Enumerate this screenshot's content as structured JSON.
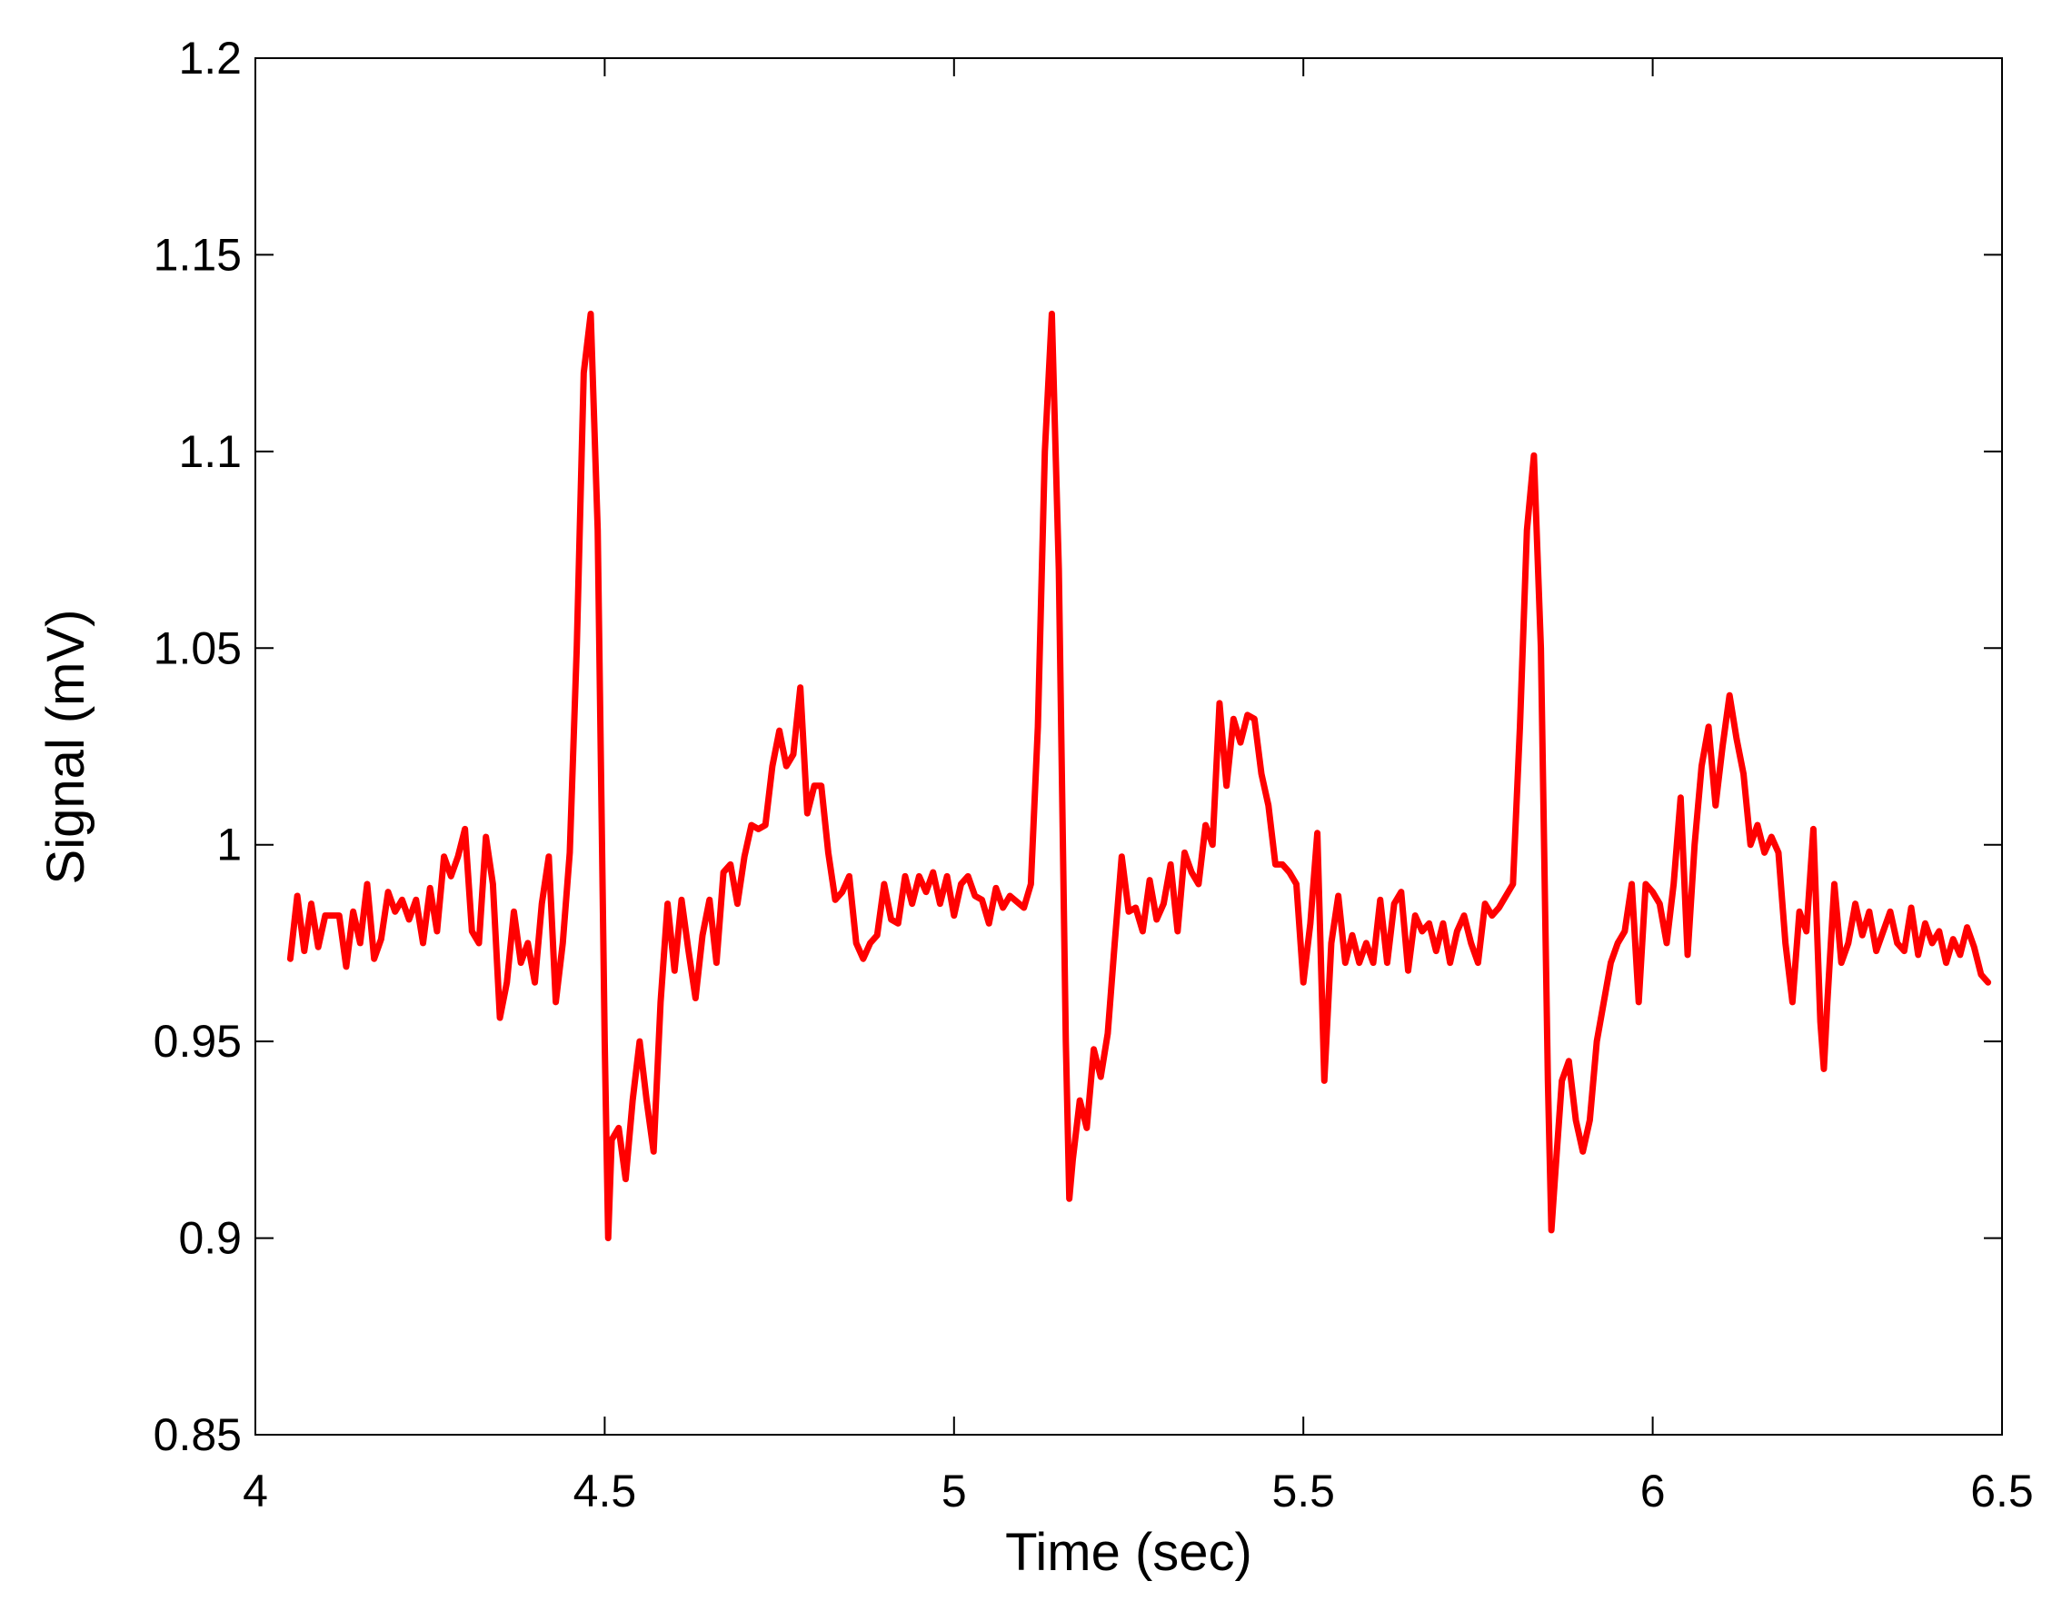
{
  "chart_data": {
    "type": "line",
    "x_label": "Time (sec)",
    "y_label": "Signal (mV)",
    "color": "#ff0000",
    "xlim": [
      4,
      6.5
    ],
    "xticks": [
      4,
      4.5,
      5,
      5.5,
      6,
      6.5
    ],
    "ylim": [
      0.85,
      1.2
    ],
    "yticks": [
      0.85,
      0.9,
      0.95,
      1,
      1.05,
      1.1,
      1.15,
      1.2
    ],
    "grid": false,
    "x": [
      4.05,
      4.06,
      4.07,
      4.08,
      4.09,
      4.1,
      4.12,
      4.13,
      4.14,
      4.15,
      4.16,
      4.17,
      4.18,
      4.19,
      4.2,
      4.21,
      4.22,
      4.23,
      4.24,
      4.25,
      4.26,
      4.27,
      4.28,
      4.29,
      4.3,
      4.31,
      4.32,
      4.33,
      4.34,
      4.35,
      4.36,
      4.37,
      4.38,
      4.39,
      4.4,
      4.41,
      4.42,
      4.43,
      4.44,
      4.45,
      4.46,
      4.47,
      4.48,
      4.49,
      4.5,
      4.505,
      4.51,
      4.52,
      4.53,
      4.54,
      4.55,
      4.56,
      4.57,
      4.58,
      4.59,
      4.6,
      4.61,
      4.62,
      4.63,
      4.64,
      4.65,
      4.66,
      4.67,
      4.68,
      4.69,
      4.7,
      4.71,
      4.72,
      4.73,
      4.74,
      4.75,
      4.76,
      4.77,
      4.78,
      4.79,
      4.8,
      4.81,
      4.82,
      4.83,
      4.84,
      4.85,
      4.86,
      4.87,
      4.88,
      4.89,
      4.9,
      4.91,
      4.92,
      4.93,
      4.94,
      4.95,
      4.96,
      4.97,
      4.98,
      4.99,
      5,
      5.01,
      5.02,
      5.03,
      5.04,
      5.05,
      5.06,
      5.07,
      5.08,
      5.1,
      5.11,
      5.12,
      5.13,
      5.14,
      5.15,
      5.16,
      5.165,
      5.17,
      5.18,
      5.19,
      5.2,
      5.21,
      5.22,
      5.23,
      5.24,
      5.25,
      5.26,
      5.27,
      5.28,
      5.29,
      5.3,
      5.31,
      5.32,
      5.33,
      5.34,
      5.35,
      5.36,
      5.37,
      5.38,
      5.39,
      5.4,
      5.41,
      5.42,
      5.43,
      5.44,
      5.45,
      5.46,
      5.47,
      5.48,
      5.49,
      5.5,
      5.51,
      5.52,
      5.53,
      5.54,
      5.55,
      5.56,
      5.57,
      5.58,
      5.59,
      5.6,
      5.61,
      5.62,
      5.63,
      5.64,
      5.65,
      5.66,
      5.67,
      5.68,
      5.69,
      5.7,
      5.71,
      5.72,
      5.73,
      5.74,
      5.75,
      5.76,
      5.77,
      5.78,
      5.8,
      5.81,
      5.82,
      5.83,
      5.84,
      5.85,
      5.855,
      5.86,
      5.87,
      5.88,
      5.89,
      5.9,
      5.91,
      5.92,
      5.93,
      5.94,
      5.95,
      5.96,
      5.97,
      5.98,
      5.99,
      6,
      6.01,
      6.02,
      6.03,
      6.04,
      6.05,
      6.06,
      6.07,
      6.08,
      6.09,
      6.1,
      6.11,
      6.12,
      6.13,
      6.14,
      6.15,
      6.16,
      6.17,
      6.18,
      6.19,
      6.2,
      6.21,
      6.22,
      6.23,
      6.24,
      6.245,
      6.25,
      6.26,
      6.27,
      6.28,
      6.29,
      6.3,
      6.31,
      6.32,
      6.33,
      6.34,
      6.35,
      6.36,
      6.37,
      6.38,
      6.39,
      6.4,
      6.41,
      6.42,
      6.43,
      6.44,
      6.45,
      6.46,
      6.47,
      6.48
    ],
    "values": [
      0.971,
      0.987,
      0.973,
      0.985,
      0.974,
      0.982,
      0.982,
      0.969,
      0.983,
      0.975,
      0.99,
      0.971,
      0.976,
      0.988,
      0.983,
      0.986,
      0.981,
      0.986,
      0.975,
      0.989,
      0.978,
      0.997,
      0.992,
      0.997,
      1.004,
      0.978,
      0.975,
      1.002,
      0.99,
      0.956,
      0.965,
      0.983,
      0.97,
      0.975,
      0.965,
      0.985,
      0.997,
      0.96,
      0.975,
      0.998,
      1.05,
      1.12,
      1.135,
      1.08,
      0.95,
      0.9,
      0.925,
      0.928,
      0.915,
      0.935,
      0.95,
      0.935,
      0.922,
      0.96,
      0.985,
      0.968,
      0.986,
      0.973,
      0.961,
      0.977,
      0.986,
      0.97,
      0.993,
      0.995,
      0.985,
      0.997,
      1.005,
      1.004,
      1.005,
      1.02,
      1.029,
      1.02,
      1.023,
      1.04,
      1.008,
      1.015,
      1.015,
      0.998,
      0.986,
      0.988,
      0.992,
      0.975,
      0.971,
      0.975,
      0.977,
      0.99,
      0.981,
      0.98,
      0.992,
      0.985,
      0.992,
      0.988,
      0.993,
      0.985,
      0.992,
      0.982,
      0.99,
      0.992,
      0.987,
      0.986,
      0.98,
      0.989,
      0.984,
      0.987,
      0.984,
      0.99,
      1.03,
      1.1,
      1.135,
      1.07,
      0.95,
      0.91,
      0.92,
      0.935,
      0.928,
      0.948,
      0.941,
      0.952,
      0.975,
      0.997,
      0.983,
      0.984,
      0.978,
      0.991,
      0.981,
      0.985,
      0.995,
      0.978,
      0.998,
      0.993,
      0.99,
      1.005,
      1.0,
      1.036,
      1.015,
      1.032,
      1.026,
      1.033,
      1.032,
      1.018,
      1.01,
      0.995,
      0.995,
      0.993,
      0.99,
      0.965,
      0.98,
      1.003,
      0.94,
      0.975,
      0.987,
      0.97,
      0.977,
      0.97,
      0.975,
      0.97,
      0.986,
      0.97,
      0.985,
      0.988,
      0.968,
      0.982,
      0.978,
      0.98,
      0.973,
      0.98,
      0.97,
      0.978,
      0.982,
      0.975,
      0.97,
      0.985,
      0.982,
      0.984,
      0.99,
      1.03,
      1.08,
      1.099,
      1.05,
      0.94,
      0.902,
      0.915,
      0.94,
      0.945,
      0.93,
      0.922,
      0.93,
      0.95,
      0.96,
      0.97,
      0.975,
      0.978,
      0.99,
      0.96,
      0.99,
      0.988,
      0.985,
      0.975,
      0.99,
      1.012,
      0.972,
      1.0,
      1.02,
      1.03,
      1.01,
      1.025,
      1.038,
      1.027,
      1.018,
      1.0,
      1.005,
      0.998,
      1.002,
      0.998,
      0.975,
      0.96,
      0.983,
      0.978,
      1.004,
      0.955,
      0.943,
      0.96,
      0.99,
      0.97,
      0.975,
      0.985,
      0.977,
      0.983,
      0.973,
      0.978,
      0.983,
      0.975,
      0.973,
      0.984,
      0.972,
      0.98,
      0.975,
      0.978,
      0.97,
      0.976,
      0.972,
      0.979,
      0.974,
      0.967,
      0.965
    ]
  }
}
